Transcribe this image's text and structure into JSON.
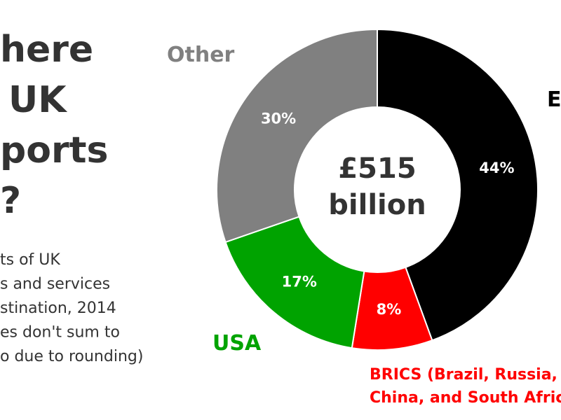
{
  "chart_data": {
    "type": "donut",
    "title": [
      "here",
      "UK",
      "ports",
      "?"
    ],
    "subtitle": [
      "ts of UK",
      "s and services",
      "stination, 2014",
      "es don't sum to",
      "o due to rounding)"
    ],
    "center_text": [
      "£515",
      "billion"
    ],
    "categories": [
      "E",
      [
        "BRICS (Brazil, Russia, I",
        "China, and South Afric"
      ],
      "USA",
      "Other"
    ],
    "values": [
      44,
      8,
      17,
      30
    ],
    "value_labels": [
      "44%",
      "8%",
      "17%",
      "30%"
    ],
    "colors": [
      "#000000",
      "#ff0000",
      "#00a300",
      "#808080"
    ]
  }
}
